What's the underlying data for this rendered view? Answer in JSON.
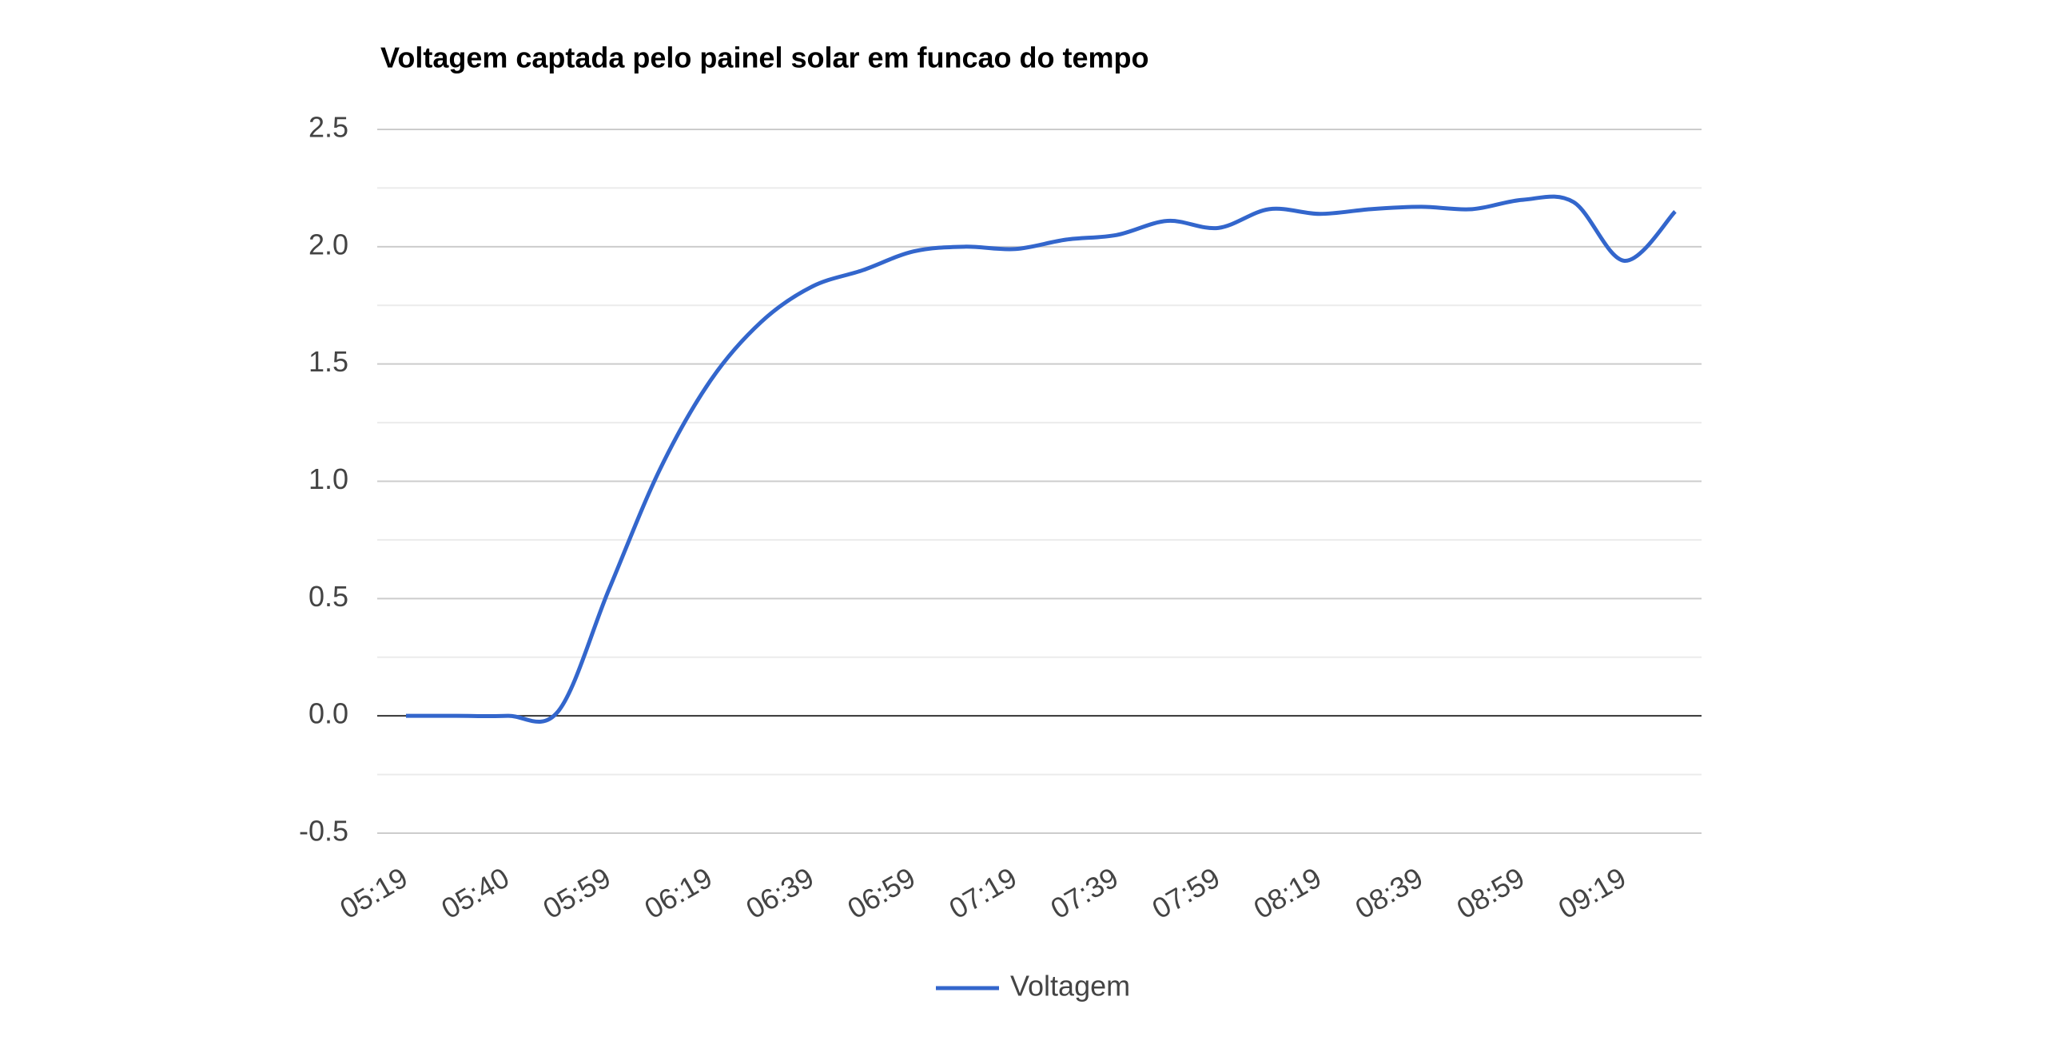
{
  "chart_data": {
    "type": "line",
    "title": "Voltagem captada pelo painel solar em funcao do tempo",
    "categories": [
      "05:19",
      null,
      "05:40",
      null,
      "05:59",
      null,
      "06:19",
      null,
      "06:39",
      null,
      "06:59",
      null,
      "07:19",
      null,
      "07:39",
      null,
      "07:59",
      null,
      "08:19",
      null,
      "08:39",
      null,
      "08:59",
      null,
      "09:19",
      null
    ],
    "series": [
      {
        "name": "Voltagem",
        "color": "#3366cc",
        "values": [
          0,
          0,
          0,
          0.02,
          0.54,
          1.05,
          1.43,
          1.68,
          1.83,
          1.9,
          1.98,
          2.0,
          1.99,
          2.03,
          2.05,
          2.11,
          2.08,
          2.16,
          2.14,
          2.16,
          2.17,
          2.16,
          2.2,
          2.19,
          1.94,
          2.15
        ]
      }
    ],
    "ylim": [
      -0.5,
      2.5
    ],
    "yticks": [
      {
        "value": -0.5,
        "label": "-0.5"
      },
      {
        "value": 0,
        "label": "0.0"
      },
      {
        "value": 0.5,
        "label": "0.5"
      },
      {
        "value": 1,
        "label": "1.0"
      },
      {
        "value": 1.5,
        "label": "1.5"
      },
      {
        "value": 2,
        "label": "2.0"
      },
      {
        "value": 2.5,
        "label": "2.5"
      }
    ],
    "grid": true,
    "legend": "bottom"
  }
}
